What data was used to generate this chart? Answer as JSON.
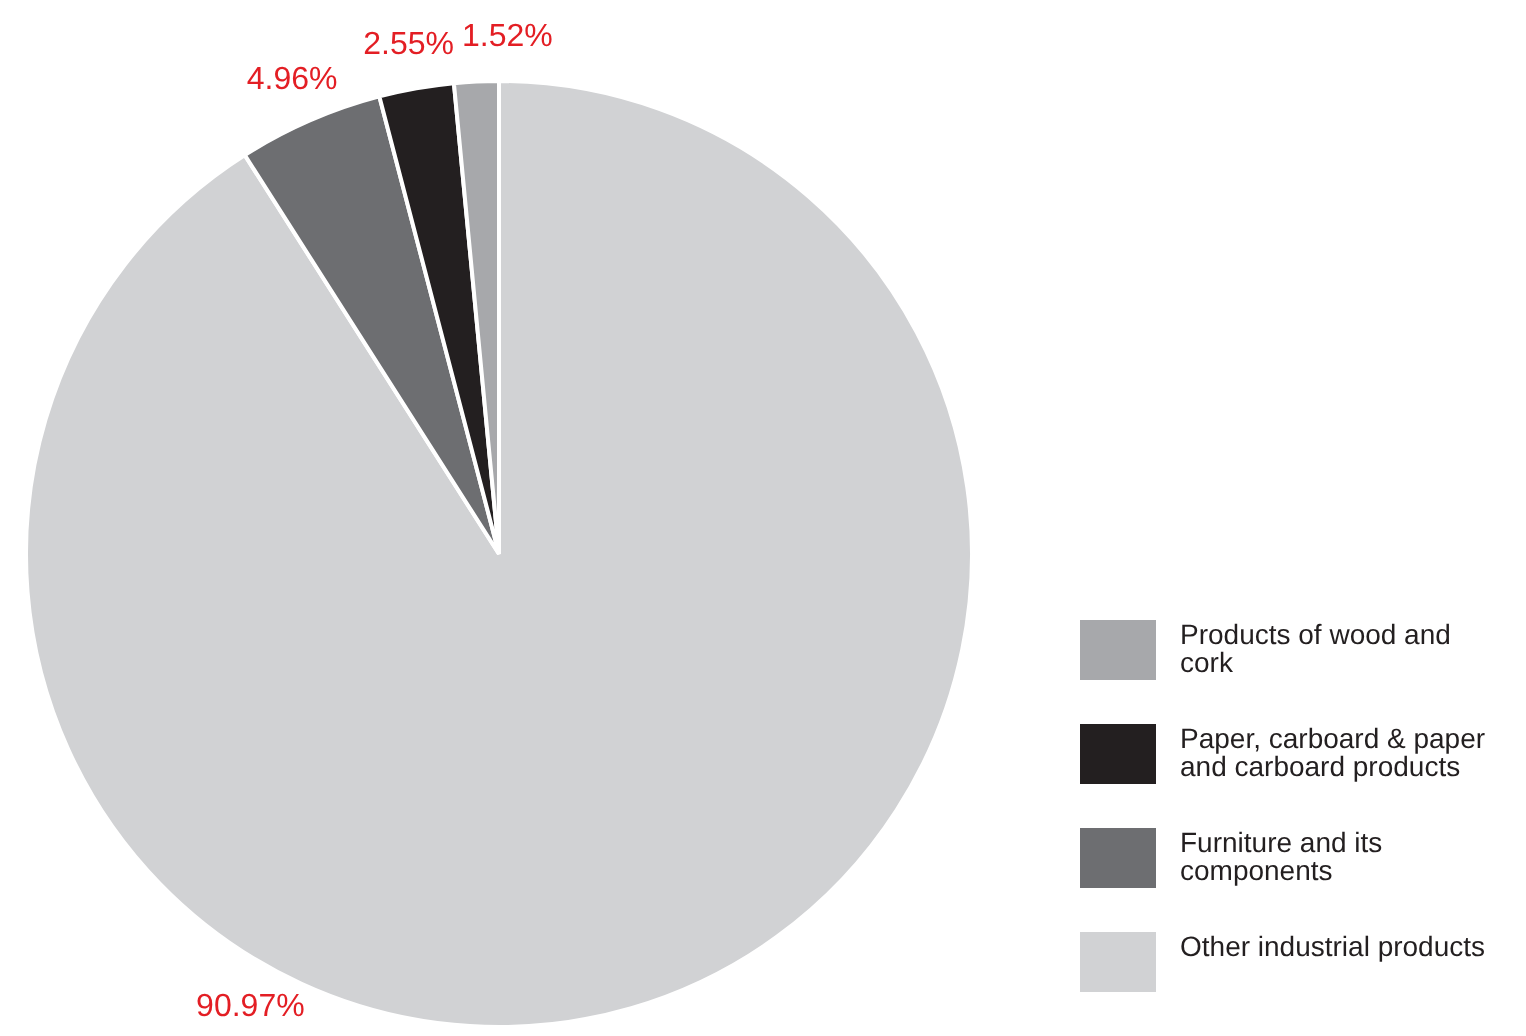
{
  "chart_data": {
    "type": "pie",
    "categories": [
      "Products of wood and cork",
      "Paper, carboard & paper and carboard products",
      "Furniture and its components",
      "Other industrial products"
    ],
    "values": [
      1.52,
      2.55,
      4.96,
      90.97
    ],
    "colors": [
      "#a7a8ab",
      "#231f20",
      "#6d6e71",
      "#d1d2d4"
    ],
    "value_labels": [
      "1.52%",
      "2.55%",
      "4.96%",
      "90.97%"
    ],
    "legend": "bottom right"
  }
}
